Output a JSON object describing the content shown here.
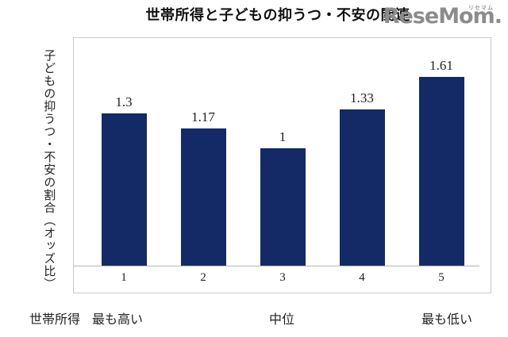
{
  "title": "世帯所得と子どもの抑うつ・不安の関連",
  "logo": {
    "text": "ReseMom.",
    "ruby": "リセマム",
    "color": "#8c8c8c"
  },
  "y_axis_label": "子どもの抑うつ・不安の割合（オッズ比）",
  "x_axis_title": "世帯所得",
  "group_labels": {
    "highest": "最も高い",
    "middle": "中位",
    "lowest": "最も低い"
  },
  "colors": {
    "bar": "#142a66",
    "plot_border": "#c9c9c9",
    "axis_line": "#b3b3b3",
    "text": "#1a1a1a",
    "logo": "#8c8c8c",
    "background": "#ffffff"
  },
  "chart_data": {
    "type": "bar",
    "title": "世帯所得と子どもの抑うつ・不安の関連",
    "categories": [
      "1",
      "2",
      "3",
      "4",
      "5"
    ],
    "values": [
      1.3,
      1.17,
      1,
      1.33,
      1.61
    ],
    "value_labels": [
      "1.3",
      "1.17",
      "1",
      "1.33",
      "1.61"
    ],
    "xlabel": "世帯所得",
    "ylabel": "子どもの抑うつ・不安の割合（オッズ比）",
    "ylim": [
      0,
      1.95
    ],
    "bar_color": "#142a66",
    "grid": false,
    "legend": false,
    "x_group_annotations": [
      {
        "category": "1",
        "label": "最も高い"
      },
      {
        "category": "3",
        "label": "中位"
      },
      {
        "category": "5",
        "label": "最も低い"
      }
    ]
  }
}
